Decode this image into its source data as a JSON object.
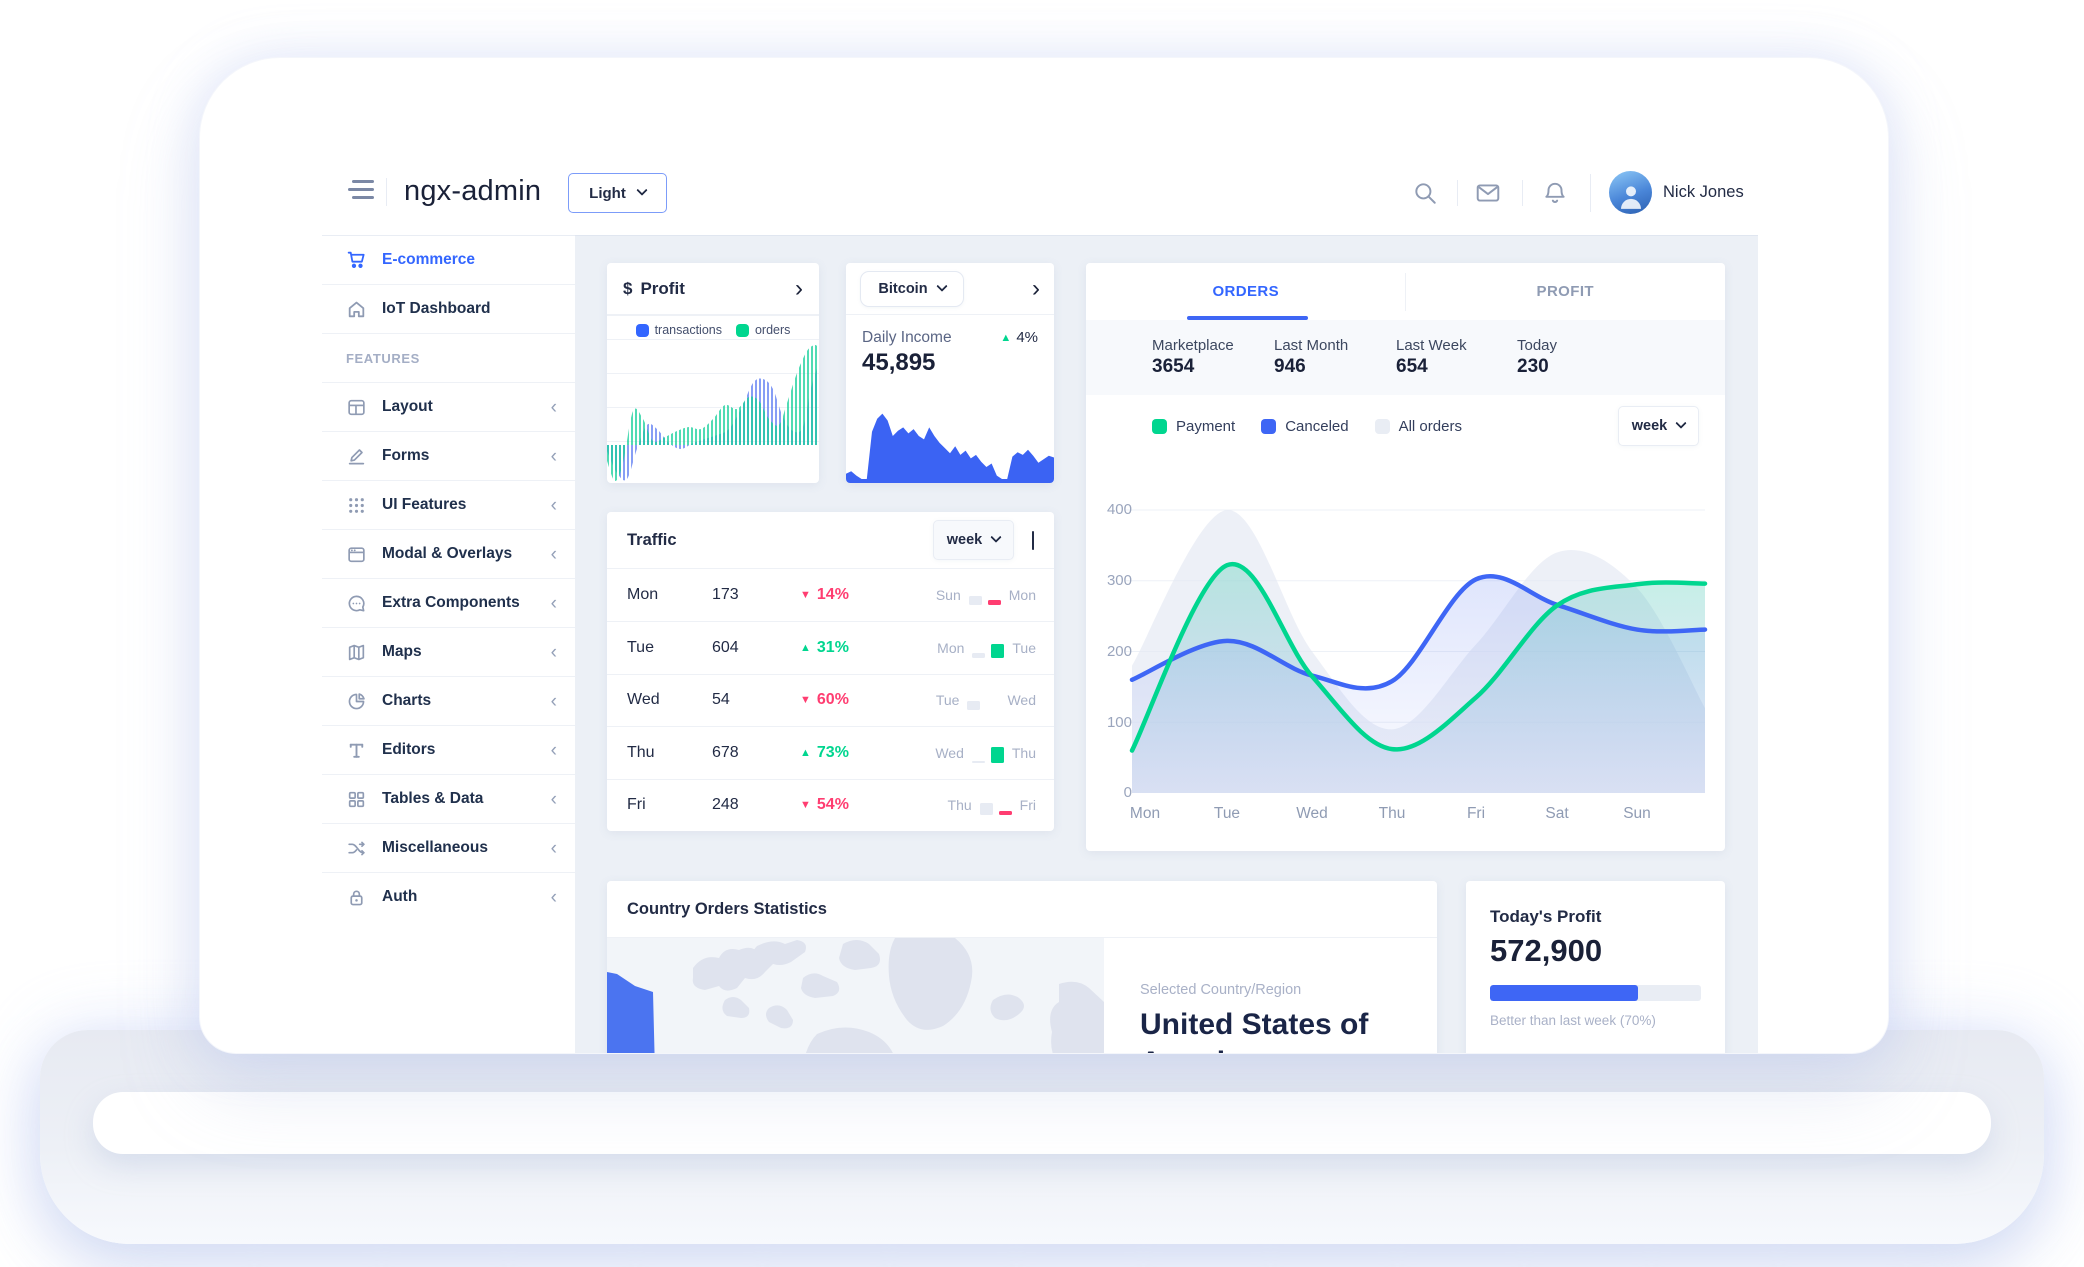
{
  "header": {
    "title": "ngx-admin",
    "theme_select": "Light",
    "user_name": "Nick Jones"
  },
  "sidebar": {
    "section_label": "FEATURES",
    "items": [
      {
        "label": "E-commerce",
        "icon": "shopping-cart",
        "active": true
      },
      {
        "label": "IoT Dashboard",
        "icon": "home",
        "active": false
      },
      {
        "label": "Layout",
        "icon": "layout",
        "active": false
      },
      {
        "label": "Forms",
        "icon": "edit",
        "active": false
      },
      {
        "label": "UI Features",
        "icon": "keypad",
        "active": false
      },
      {
        "label": "Modal & Overlays",
        "icon": "browser",
        "active": false
      },
      {
        "label": "Extra Components",
        "icon": "message-circle",
        "active": false
      },
      {
        "label": "Maps",
        "icon": "map",
        "active": false
      },
      {
        "label": "Charts",
        "icon": "pie-chart",
        "active": false
      },
      {
        "label": "Editors",
        "icon": "text",
        "active": false
      },
      {
        "label": "Tables & Data",
        "icon": "grid",
        "active": false
      },
      {
        "label": "Miscellaneous",
        "icon": "shuffle",
        "active": false
      },
      {
        "label": "Auth",
        "icon": "lock",
        "active": false
      }
    ]
  },
  "profit_card": {
    "currency": "$",
    "title": "Profit",
    "legend": [
      {
        "label": "transactions",
        "color": "#3366ff"
      },
      {
        "label": "orders",
        "color": "#00d68f"
      }
    ],
    "chart": {
      "type": "area",
      "baseline_y": 112,
      "series": [
        {
          "name": "transactions",
          "color": "#5f7df2",
          "points": [
            [
              0,
              118
            ],
            [
              10,
              140
            ],
            [
              20,
              146
            ],
            [
              30,
              116
            ],
            [
              40,
              92
            ],
            [
              50,
              96
            ],
            [
              62,
              110
            ],
            [
              74,
              116
            ],
            [
              86,
              110
            ],
            [
              98,
              106
            ],
            [
              110,
              102
            ],
            [
              122,
              96
            ],
            [
              134,
              76
            ],
            [
              146,
              50
            ],
            [
              156,
              46
            ],
            [
              166,
              56
            ],
            [
              176,
              84
            ],
            [
              186,
              98
            ],
            [
              196,
              94
            ],
            [
              204,
              55
            ],
            [
              212,
              30
            ]
          ]
        },
        {
          "name": "orders",
          "color": "#17cf9b",
          "points": [
            [
              0,
              128
            ],
            [
              8,
              148
            ],
            [
              16,
              130
            ],
            [
              26,
              78
            ],
            [
              36,
              86
            ],
            [
              46,
              108
            ],
            [
              58,
              104
            ],
            [
              70,
              98
            ],
            [
              82,
              94
            ],
            [
              94,
              96
            ],
            [
              106,
              86
            ],
            [
              118,
              72
            ],
            [
              130,
              76
            ],
            [
              142,
              64
            ],
            [
              152,
              68
            ],
            [
              162,
              86
            ],
            [
              172,
              92
            ],
            [
              180,
              70
            ],
            [
              190,
              40
            ],
            [
              200,
              18
            ],
            [
              208,
              12
            ],
            [
              212,
              16
            ]
          ]
        }
      ]
    }
  },
  "bitcoin_card": {
    "selector": "Bitcoin",
    "income_label": "Daily Income",
    "income_value": "45,895",
    "delta": "4%",
    "chart": {
      "type": "area",
      "color": "#3b63f3",
      "values": [
        6,
        9,
        4,
        0,
        0,
        55,
        70,
        76,
        68,
        50,
        56,
        60,
        53,
        58,
        50,
        46,
        60,
        50,
        42,
        36,
        30,
        38,
        28,
        33,
        24,
        28,
        20,
        14,
        18,
        4,
        0,
        0,
        26,
        31,
        28,
        34,
        27,
        19,
        23,
        27,
        25
      ]
    }
  },
  "orders_card": {
    "tabs": [
      {
        "label": "ORDERS",
        "active": true
      },
      {
        "label": "PROFIT",
        "active": false
      }
    ],
    "stats": [
      {
        "label": "Marketplace",
        "value": "3654"
      },
      {
        "label": "Last Month",
        "value": "946"
      },
      {
        "label": "Last Week",
        "value": "654"
      },
      {
        "label": "Today",
        "value": "230"
      }
    ],
    "legend": [
      {
        "label": "Payment",
        "color": "#00d68f"
      },
      {
        "label": "Canceled",
        "color": "#3e66f5"
      },
      {
        "label": "All orders",
        "color": "#e9edf4"
      }
    ],
    "period": "week",
    "chart": {
      "type": "line",
      "x_ticks": [
        "Mon",
        "Tue",
        "Wed",
        "Thu",
        "Fri",
        "Sat",
        "Sun"
      ],
      "y_ticks": [
        "400",
        "300",
        "200",
        "100",
        "0"
      ],
      "ylim": [
        0,
        400
      ],
      "series": [
        {
          "name": "Payment",
          "color": "#00d68f",
          "values": [
            60,
            322,
            165,
            62,
            135,
            265,
            295,
            296
          ]
        },
        {
          "name": "Canceled",
          "color": "#3e66f5",
          "values": [
            160,
            215,
            166,
            158,
            302,
            266,
            231,
            231
          ]
        },
        {
          "name": "All orders",
          "color": "#e4e8f2",
          "values": [
            180,
            400,
            200,
            90,
            210,
            340,
            290,
            120
          ]
        }
      ]
    }
  },
  "traffic_card": {
    "title": "Traffic",
    "period": "week",
    "rows": [
      {
        "day": "Mon",
        "value": "173",
        "delta": "14%",
        "dir": "down",
        "prev_day": "Sun",
        "cur_day": "Mon",
        "prev_h": 9,
        "cur_h": 5
      },
      {
        "day": "Tue",
        "value": "604",
        "delta": "31%",
        "dir": "up",
        "prev_day": "Mon",
        "cur_day": "Tue",
        "prev_h": 5,
        "cur_h": 14
      },
      {
        "day": "Wed",
        "value": "54",
        "delta": "60%",
        "dir": "down",
        "prev_day": "Tue",
        "cur_day": "Wed",
        "prev_h": 9,
        "cur_h": 0
      },
      {
        "day": "Thu",
        "value": "678",
        "delta": "73%",
        "dir": "up",
        "prev_day": "Wed",
        "cur_day": "Thu",
        "prev_h": 2,
        "cur_h": 16
      },
      {
        "day": "Fri",
        "value": "248",
        "delta": "54%",
        "dir": "down",
        "prev_day": "Thu",
        "cur_day": "Fri",
        "prev_h": 12,
        "cur_h": 4
      }
    ]
  },
  "country_card": {
    "title": "Country Orders Statistics",
    "selected_label": "Selected Country/Region",
    "selected_country": "United States of America",
    "highlight_color": "#4b74f0"
  },
  "today_profit_card": {
    "title": "Today's Profit",
    "value": "572,900",
    "progress_percent": 70,
    "caption": "Better than last week (70%)"
  },
  "colors": {
    "primary": "#3366ff",
    "success": "#00d68f",
    "danger": "#ff3d71",
    "muted": "#8f9bb3",
    "background": "#ecf0f6"
  }
}
